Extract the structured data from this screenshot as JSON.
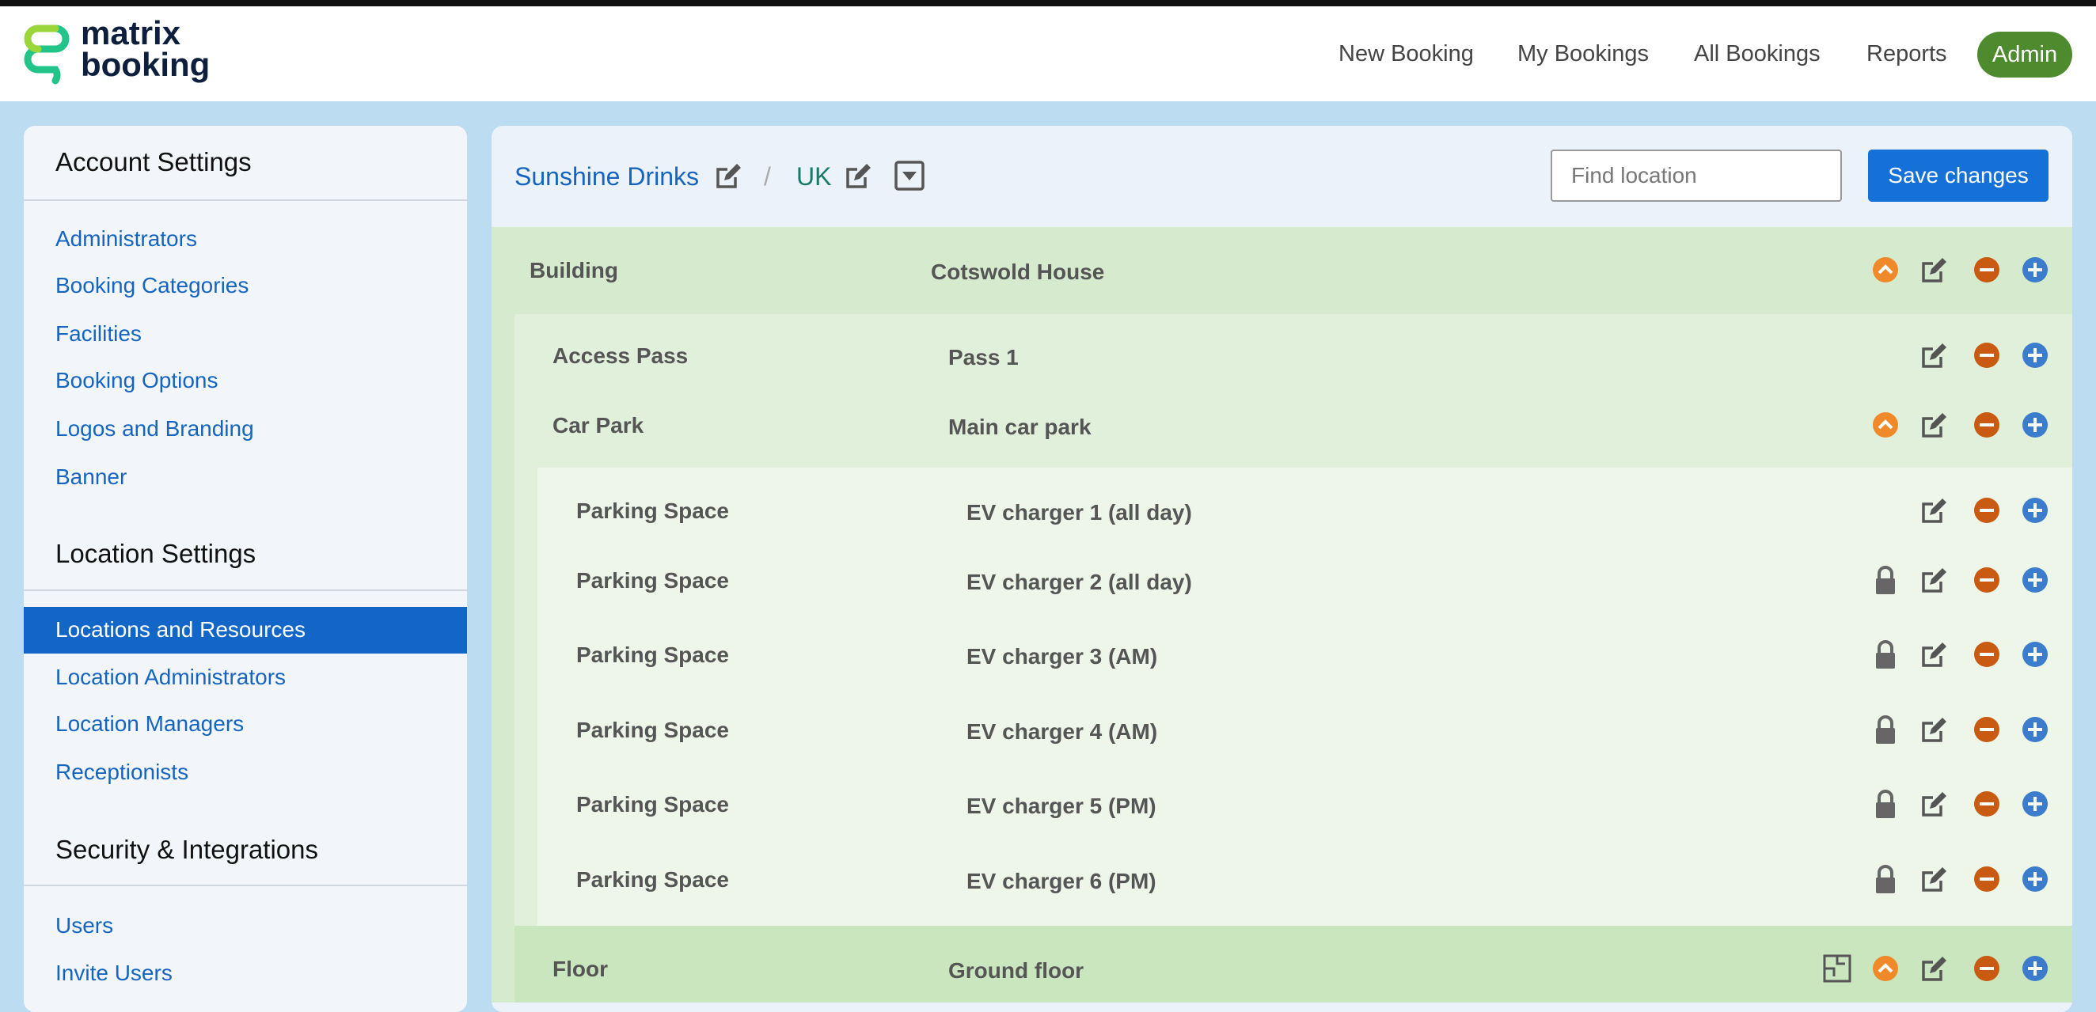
{
  "header": {
    "logo": [
      "matrix",
      "booking"
    ],
    "nav": [
      "New Booking",
      "My Bookings",
      "All Bookings",
      "Reports"
    ],
    "admin": "Admin"
  },
  "sidebar": {
    "sections": [
      {
        "title": "Account Settings",
        "links": [
          "Administrators",
          "Booking Categories",
          "Facilities",
          "Booking Options",
          "Logos and Branding",
          "Banner"
        ]
      },
      {
        "title": "Location Settings",
        "links": [
          "Locations and Resources",
          "Location Administrators",
          "Location Managers",
          "Receptionists"
        ]
      },
      {
        "title": "Security & Integrations",
        "links": [
          "Users",
          "Invite Users"
        ]
      }
    ]
  },
  "breadcrumb": [
    "Sunshine Drinks",
    "/",
    "UK"
  ],
  "search": {
    "placeholder": "Find location"
  },
  "save_button": "Save changes",
  "rows": [
    [
      "Building",
      "Cotswold House"
    ],
    [
      "Access Pass",
      "Pass 1"
    ],
    [
      "Car Park",
      "Main car park"
    ],
    [
      "Parking Space",
      "EV charger 1 (all day)"
    ],
    [
      "Parking Space",
      "EV charger 2 (all day)"
    ],
    [
      "Parking Space",
      "EV charger 3 (AM)"
    ],
    [
      "Parking Space",
      "EV charger 4 (AM)"
    ],
    [
      "Parking Space",
      "EV charger 5 (PM)"
    ],
    [
      "Parking Space",
      "EV charger 6 (PM)"
    ],
    [
      "Floor",
      "Ground floor"
    ]
  ]
}
